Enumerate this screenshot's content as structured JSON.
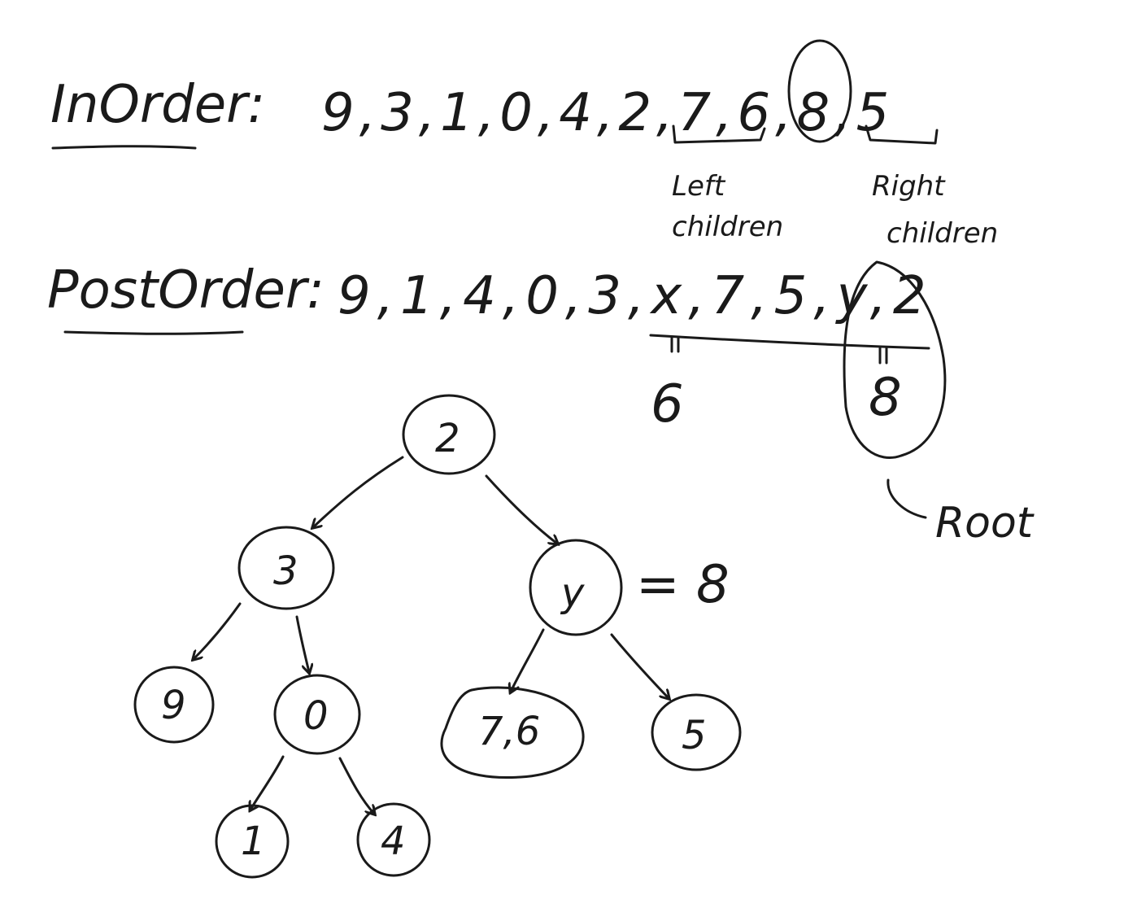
{
  "inorder": {
    "label": "InOrder:",
    "sequence": "9,3,1,0,4,2,7,6,8,5",
    "left_note": "Left\nchildren",
    "right_note": "Right\nchildren"
  },
  "postorder": {
    "label": "PostOrder:",
    "sequence": "9,1,4,0,3,x,7,5,y,2",
    "x_value": "6",
    "y_value": "8",
    "root_note": "Root"
  },
  "tree": {
    "root": "2",
    "left": "3",
    "right": "y",
    "right_equals": "= 8",
    "ll": "9",
    "lr": "0",
    "lrl": "1",
    "lrr": "4",
    "rl": "7,6",
    "rr": "5"
  }
}
